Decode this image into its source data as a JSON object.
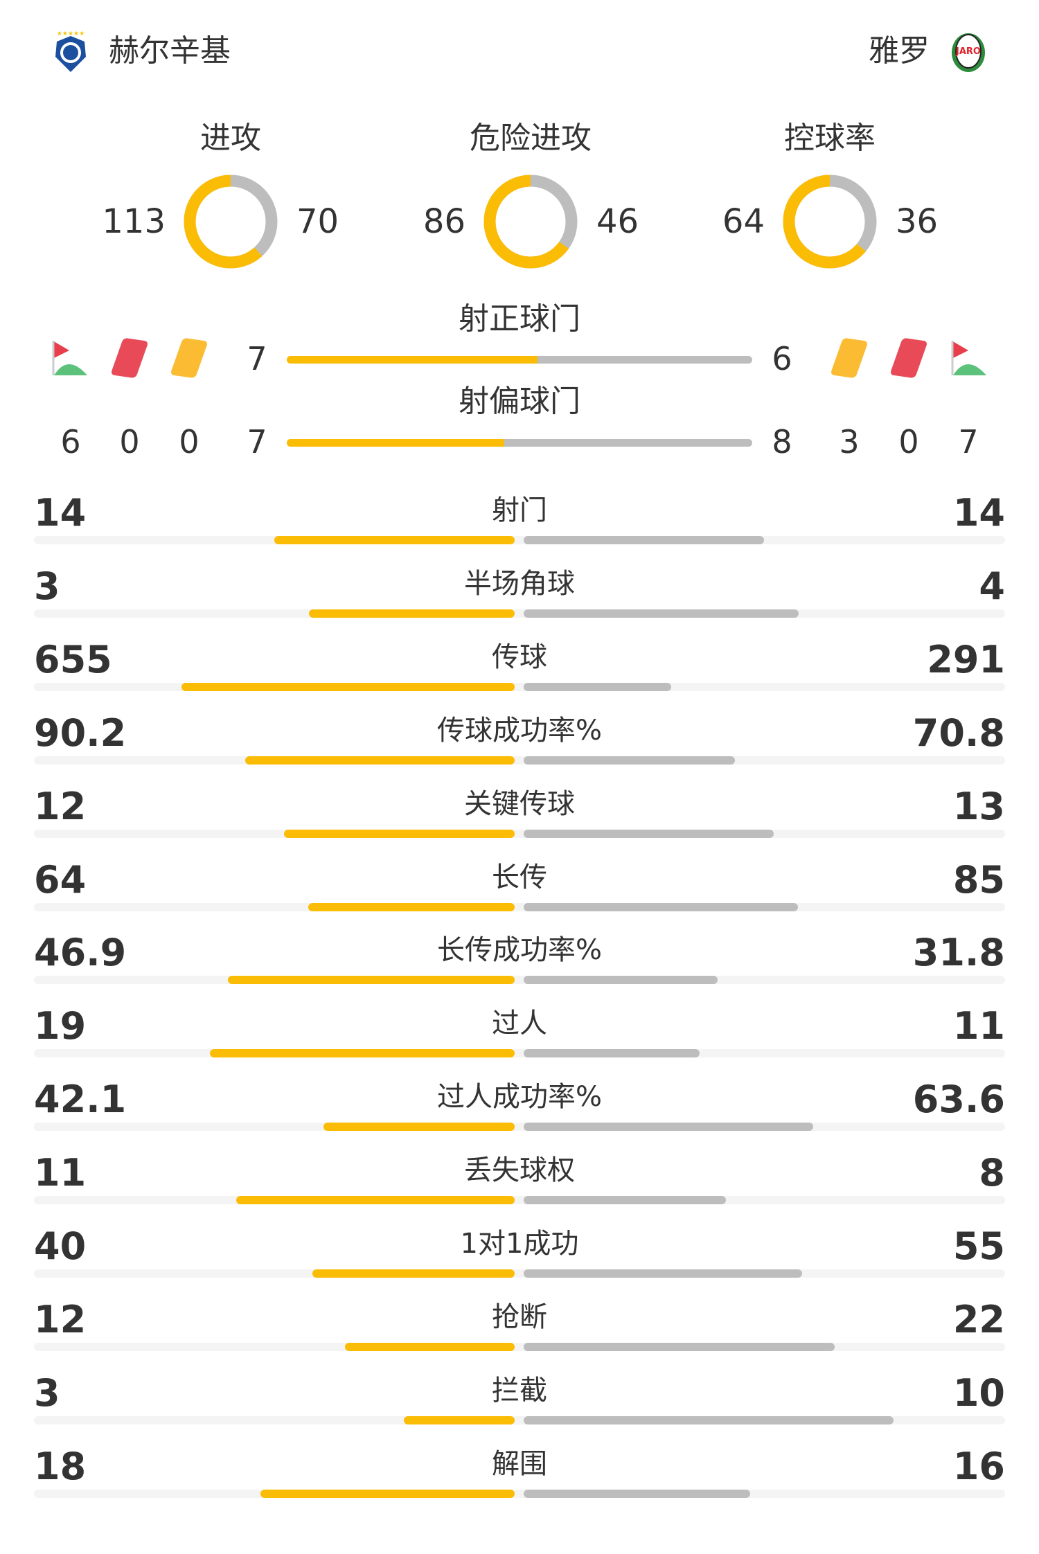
{
  "header": {
    "home_team": "赫尔辛基",
    "away_team": "雅罗",
    "home_logo_icon": "hjk-crest-icon",
    "away_logo_icon": "jaro-crest-icon"
  },
  "colors": {
    "home": "#fbbc05",
    "away": "#bdbdbd",
    "track": "#f4f4f4",
    "red_card": "#e84b57",
    "yellow_card": "#fbbc33",
    "corner_flag_red": "#e83e4b",
    "corner_flag_green": "#5cc27b"
  },
  "donuts": [
    {
      "title": "进攻",
      "home": "113",
      "away": "70"
    },
    {
      "title": "危险进攻",
      "home": "86",
      "away": "46"
    },
    {
      "title": "控球率",
      "home": "64",
      "away": "36"
    }
  ],
  "shots_on_target": {
    "title": "射正球门",
    "home": "7",
    "away": "6"
  },
  "shots_off_target": {
    "title": "射偏球门",
    "home": "7",
    "away": "8"
  },
  "home_counts": {
    "corners": "6",
    "red_cards": "0",
    "yellow_cards": "0"
  },
  "away_counts": {
    "corners": "7",
    "red_cards": "0",
    "yellow_cards": "3"
  },
  "stats": [
    {
      "label": "射门",
      "home": "14",
      "away": "14"
    },
    {
      "label": "半场角球",
      "home": "3",
      "away": "4"
    },
    {
      "label": "传球",
      "home": "655",
      "away": "291"
    },
    {
      "label": "传球成功率%",
      "home": "90.2",
      "away": "70.8"
    },
    {
      "label": "关键传球",
      "home": "12",
      "away": "13"
    },
    {
      "label": "长传",
      "home": "64",
      "away": "85"
    },
    {
      "label": "长传成功率%",
      "home": "46.9",
      "away": "31.8"
    },
    {
      "label": "过人",
      "home": "19",
      "away": "11"
    },
    {
      "label": "过人成功率%",
      "home": "42.1",
      "away": "63.6"
    },
    {
      "label": "丢失球权",
      "home": "11",
      "away": "8"
    },
    {
      "label": "1对1成功",
      "home": "40",
      "away": "55"
    },
    {
      "label": "抢断",
      "home": "12",
      "away": "22"
    },
    {
      "label": "拦截",
      "home": "3",
      "away": "10"
    },
    {
      "label": "解围",
      "home": "18",
      "away": "16"
    }
  ]
}
